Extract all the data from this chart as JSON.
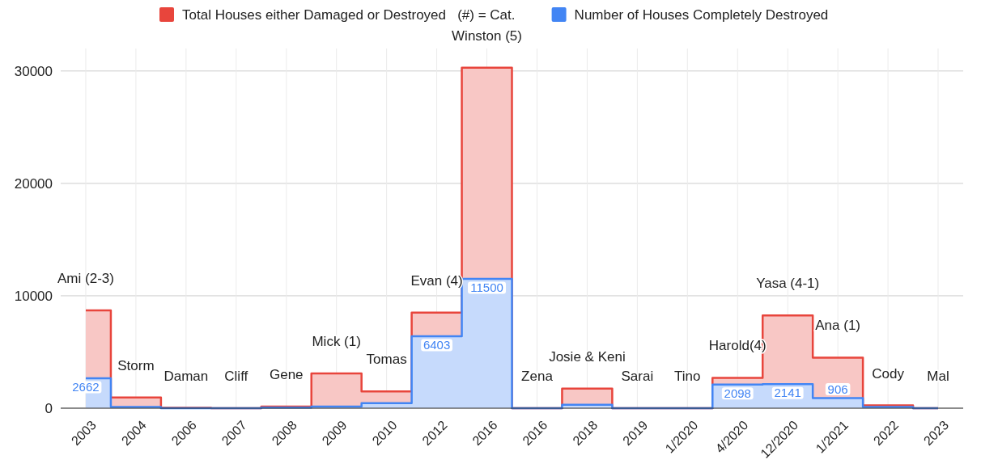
{
  "chart_data": {
    "type": "step",
    "categories": [
      "2003",
      "2004",
      "2006",
      "2007",
      "2008",
      "2009",
      "2010",
      "2012",
      "2016",
      "2016",
      "2018",
      "2019",
      "1/2020",
      "4/2020",
      "12/2020",
      "1/2021",
      "2022",
      "2023"
    ],
    "series": [
      {
        "name": "Total Houses either Damaged or Destroyed   (#) = Cat.",
        "color": "#e8453c",
        "values": [
          8700,
          950,
          30,
          0,
          150,
          3100,
          1500,
          8500,
          30300,
          0,
          1750,
          0,
          0,
          2700,
          8250,
          4500,
          250,
          0
        ]
      },
      {
        "name": "Number of Houses Completely Destroyed",
        "color": "#4285f4",
        "values": [
          2662,
          100,
          0,
          0,
          50,
          150,
          450,
          6403,
          11500,
          0,
          300,
          0,
          0,
          2098,
          2141,
          906,
          100,
          0
        ],
        "value_labels": [
          "2662",
          null,
          null,
          null,
          null,
          null,
          null,
          "6403",
          "11500",
          null,
          null,
          null,
          null,
          "2098",
          "2141",
          "906",
          null,
          null
        ]
      }
    ],
    "annotations": [
      "Ami (2-3)",
      "Storm",
      "Daman",
      "Cliff",
      "Gene",
      "Mick (1)",
      "Tomas",
      "Evan (4)",
      "Winston (5)",
      "Zena",
      "Josie & Keni",
      "Sarai",
      "Tino",
      "Harold(4)",
      "Yasa (4-1)",
      "Ana (1)",
      "Cody",
      "Mal"
    ],
    "ylim": [
      0,
      32000
    ],
    "yticks": [
      0,
      10000,
      20000,
      30000
    ],
    "grid": true,
    "legend": "top"
  }
}
